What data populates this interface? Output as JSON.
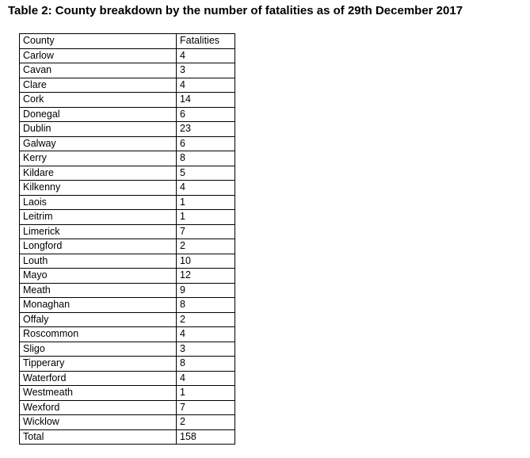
{
  "title": "Table 2: County breakdown by the number of fatalities as of 29th December 2017",
  "table": {
    "header": [
      "County",
      "Fatalities"
    ],
    "rows": [
      [
        "Carlow",
        4
      ],
      [
        "Cavan",
        3
      ],
      [
        "Clare",
        4
      ],
      [
        "Cork",
        14
      ],
      [
        "Donegal",
        6
      ],
      [
        "Dublin",
        23
      ],
      [
        "Galway",
        6
      ],
      [
        "Kerry",
        8
      ],
      [
        "Kildare",
        5
      ],
      [
        "Kilkenny",
        4
      ],
      [
        "Laois",
        1
      ],
      [
        "Leitrim",
        1
      ],
      [
        "Limerick",
        7
      ],
      [
        "Longford",
        2
      ],
      [
        "Louth",
        10
      ],
      [
        "Mayo",
        12
      ],
      [
        "Meath",
        9
      ],
      [
        "Monaghan",
        8
      ],
      [
        "Offaly",
        2
      ],
      [
        "Roscommon",
        4
      ],
      [
        "Sligo",
        3
      ],
      [
        "Tipperary",
        8
      ],
      [
        "Waterford",
        4
      ],
      [
        "Westmeath",
        1
      ],
      [
        "Wexford",
        7
      ],
      [
        "Wicklow",
        2
      ],
      [
        "Total",
        158
      ]
    ]
  }
}
